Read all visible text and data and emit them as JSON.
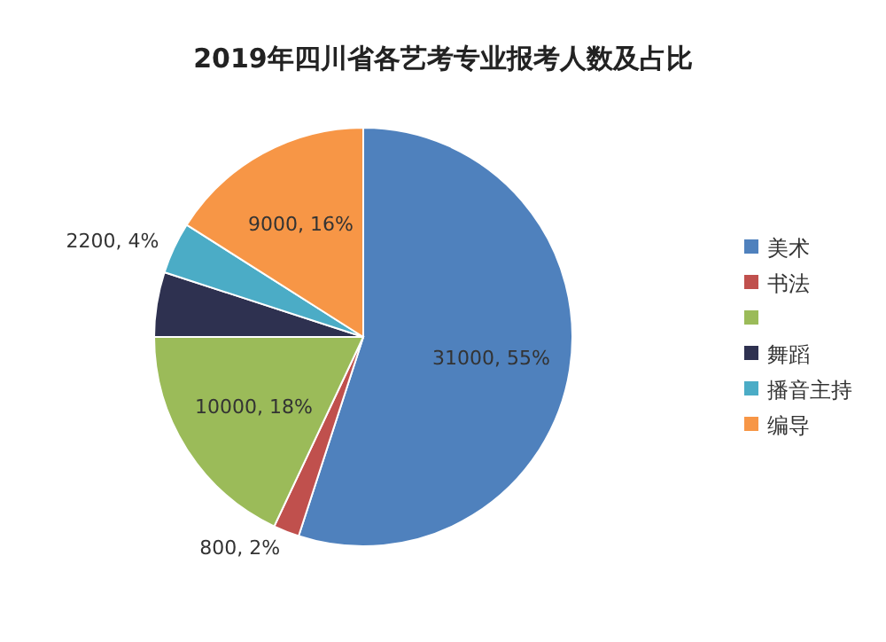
{
  "chart_data": {
    "type": "pie",
    "title": "2019年四川省各艺考专业报考人数及占比",
    "categories": [
      "美术",
      "书法",
      null,
      "舞蹈",
      "播音主持",
      "编导"
    ],
    "values": [
      55,
      2,
      18,
      5,
      4,
      16
    ],
    "colors": [
      "#4f81bd",
      "#c0504d",
      "#9bbb59",
      "#2e3150",
      "#4bacc6",
      "#f79646"
    ],
    "value_labels": [
      "31000, 55%",
      "800, 2%",
      "10000, 18%",
      null,
      "2200, 4%",
      "9000, 16%"
    ],
    "legend": "right"
  }
}
